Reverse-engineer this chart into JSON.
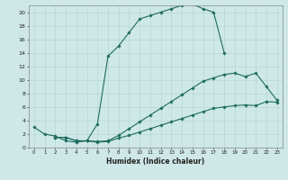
{
  "xlabel": "Humidex (Indice chaleur)",
  "bg_color": "#cde8e6",
  "grid_color": "#afd4d2",
  "line_color": "#1e6b5e",
  "xlim": [
    -0.5,
    23.5
  ],
  "ylim": [
    0,
    21
  ],
  "xticks": [
    0,
    1,
    2,
    3,
    4,
    5,
    6,
    7,
    8,
    9,
    10,
    11,
    12,
    13,
    14,
    15,
    16,
    17,
    18,
    19,
    20,
    21,
    22,
    23
  ],
  "yticks": [
    0,
    2,
    4,
    6,
    8,
    10,
    12,
    14,
    16,
    18,
    20
  ],
  "curve1_x": [
    0,
    1,
    2,
    3,
    4,
    5,
    6,
    7,
    8,
    9,
    10,
    11,
    12,
    13,
    14,
    15,
    16,
    17,
    18
  ],
  "curve1_y": [
    3.0,
    2.0,
    1.7,
    1.0,
    0.8,
    1.0,
    3.5,
    13.5,
    15.0,
    17.0,
    19.0,
    19.5,
    20.0,
    20.5,
    21.0,
    21.2,
    20.5,
    20.0,
    14.0
  ],
  "curve2_x": [
    2,
    3,
    4,
    5,
    6,
    7,
    8,
    9,
    10,
    11,
    12,
    13,
    14,
    15,
    16,
    17,
    18,
    19,
    20,
    21,
    22,
    23
  ],
  "curve2_y": [
    1.5,
    1.5,
    1.0,
    1.0,
    0.9,
    1.0,
    1.8,
    2.8,
    3.8,
    4.8,
    5.8,
    6.8,
    7.8,
    8.8,
    9.8,
    10.3,
    10.8,
    11.0,
    10.5,
    11.0,
    9.0,
    7.0
  ],
  "curve3_x": [
    2,
    3,
    4,
    5,
    6,
    7,
    8,
    9,
    10,
    11,
    12,
    13,
    14,
    15,
    16,
    17,
    18,
    19,
    20,
    21,
    22,
    23
  ],
  "curve3_y": [
    1.5,
    1.5,
    1.0,
    1.0,
    0.8,
    0.9,
    1.4,
    1.8,
    2.3,
    2.8,
    3.3,
    3.8,
    4.3,
    4.8,
    5.3,
    5.8,
    6.0,
    6.2,
    6.3,
    6.2,
    6.8,
    6.7
  ]
}
